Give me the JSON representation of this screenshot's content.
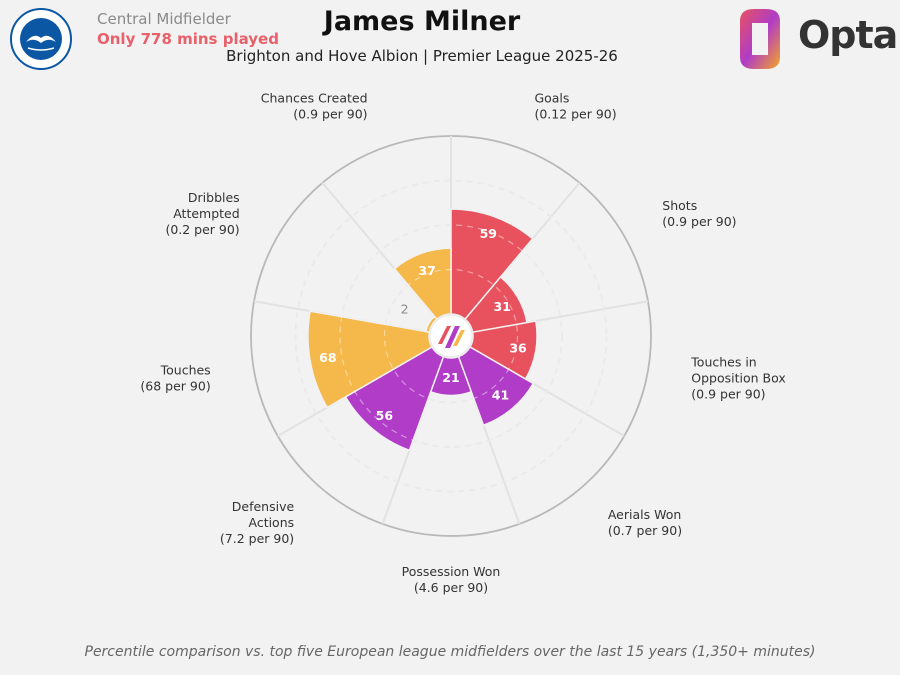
{
  "header": {
    "role": "Central Midfielder",
    "minutes_note": "Only 778 mins played",
    "title": "James Milner",
    "subtitle": "Brighton and Hove Albion | Premier League 2025-26",
    "brand": "Opta",
    "club_crest_text": "BRIGHTON & HOVE ALBION"
  },
  "footnote": "Percentile comparison vs. top five European league midfielders over the last 15 years (1,350+ minutes)",
  "chart_data": {
    "type": "polar-bar",
    "max": 100,
    "categories": [
      {
        "label": "Goals",
        "sub": "(0.12 per 90)",
        "value": 59,
        "group": "attacking"
      },
      {
        "label": "Shots",
        "sub": "(0.9 per 90)",
        "value": 31,
        "group": "attacking"
      },
      {
        "label": "Touches in Opposition Box",
        "sub": "(0.9 per 90)",
        "value": 36,
        "group": "attacking"
      },
      {
        "label": "Aerials Won",
        "sub": "(0.7 per 90)",
        "value": 41,
        "group": "defending"
      },
      {
        "label": "Possession Won",
        "sub": "(4.6 per 90)",
        "value": 21,
        "group": "defending"
      },
      {
        "label": "Defensive Actions",
        "sub": "(7.2 per 90)",
        "value": 56,
        "group": "defending"
      },
      {
        "label": "Touches",
        "sub": "(68 per 90)",
        "value": 68,
        "group": "possession"
      },
      {
        "label": "Dribbles Attempted",
        "sub": "(0.2 per 90)",
        "value": 2,
        "group": "possession"
      },
      {
        "label": "Chances Created",
        "sub": "(0.9 per 90)",
        "value": 37,
        "group": "possession"
      }
    ],
    "group_colors": {
      "attacking": "#e8525f",
      "defending": "#b03cc7",
      "possession": "#f5b84a"
    }
  }
}
